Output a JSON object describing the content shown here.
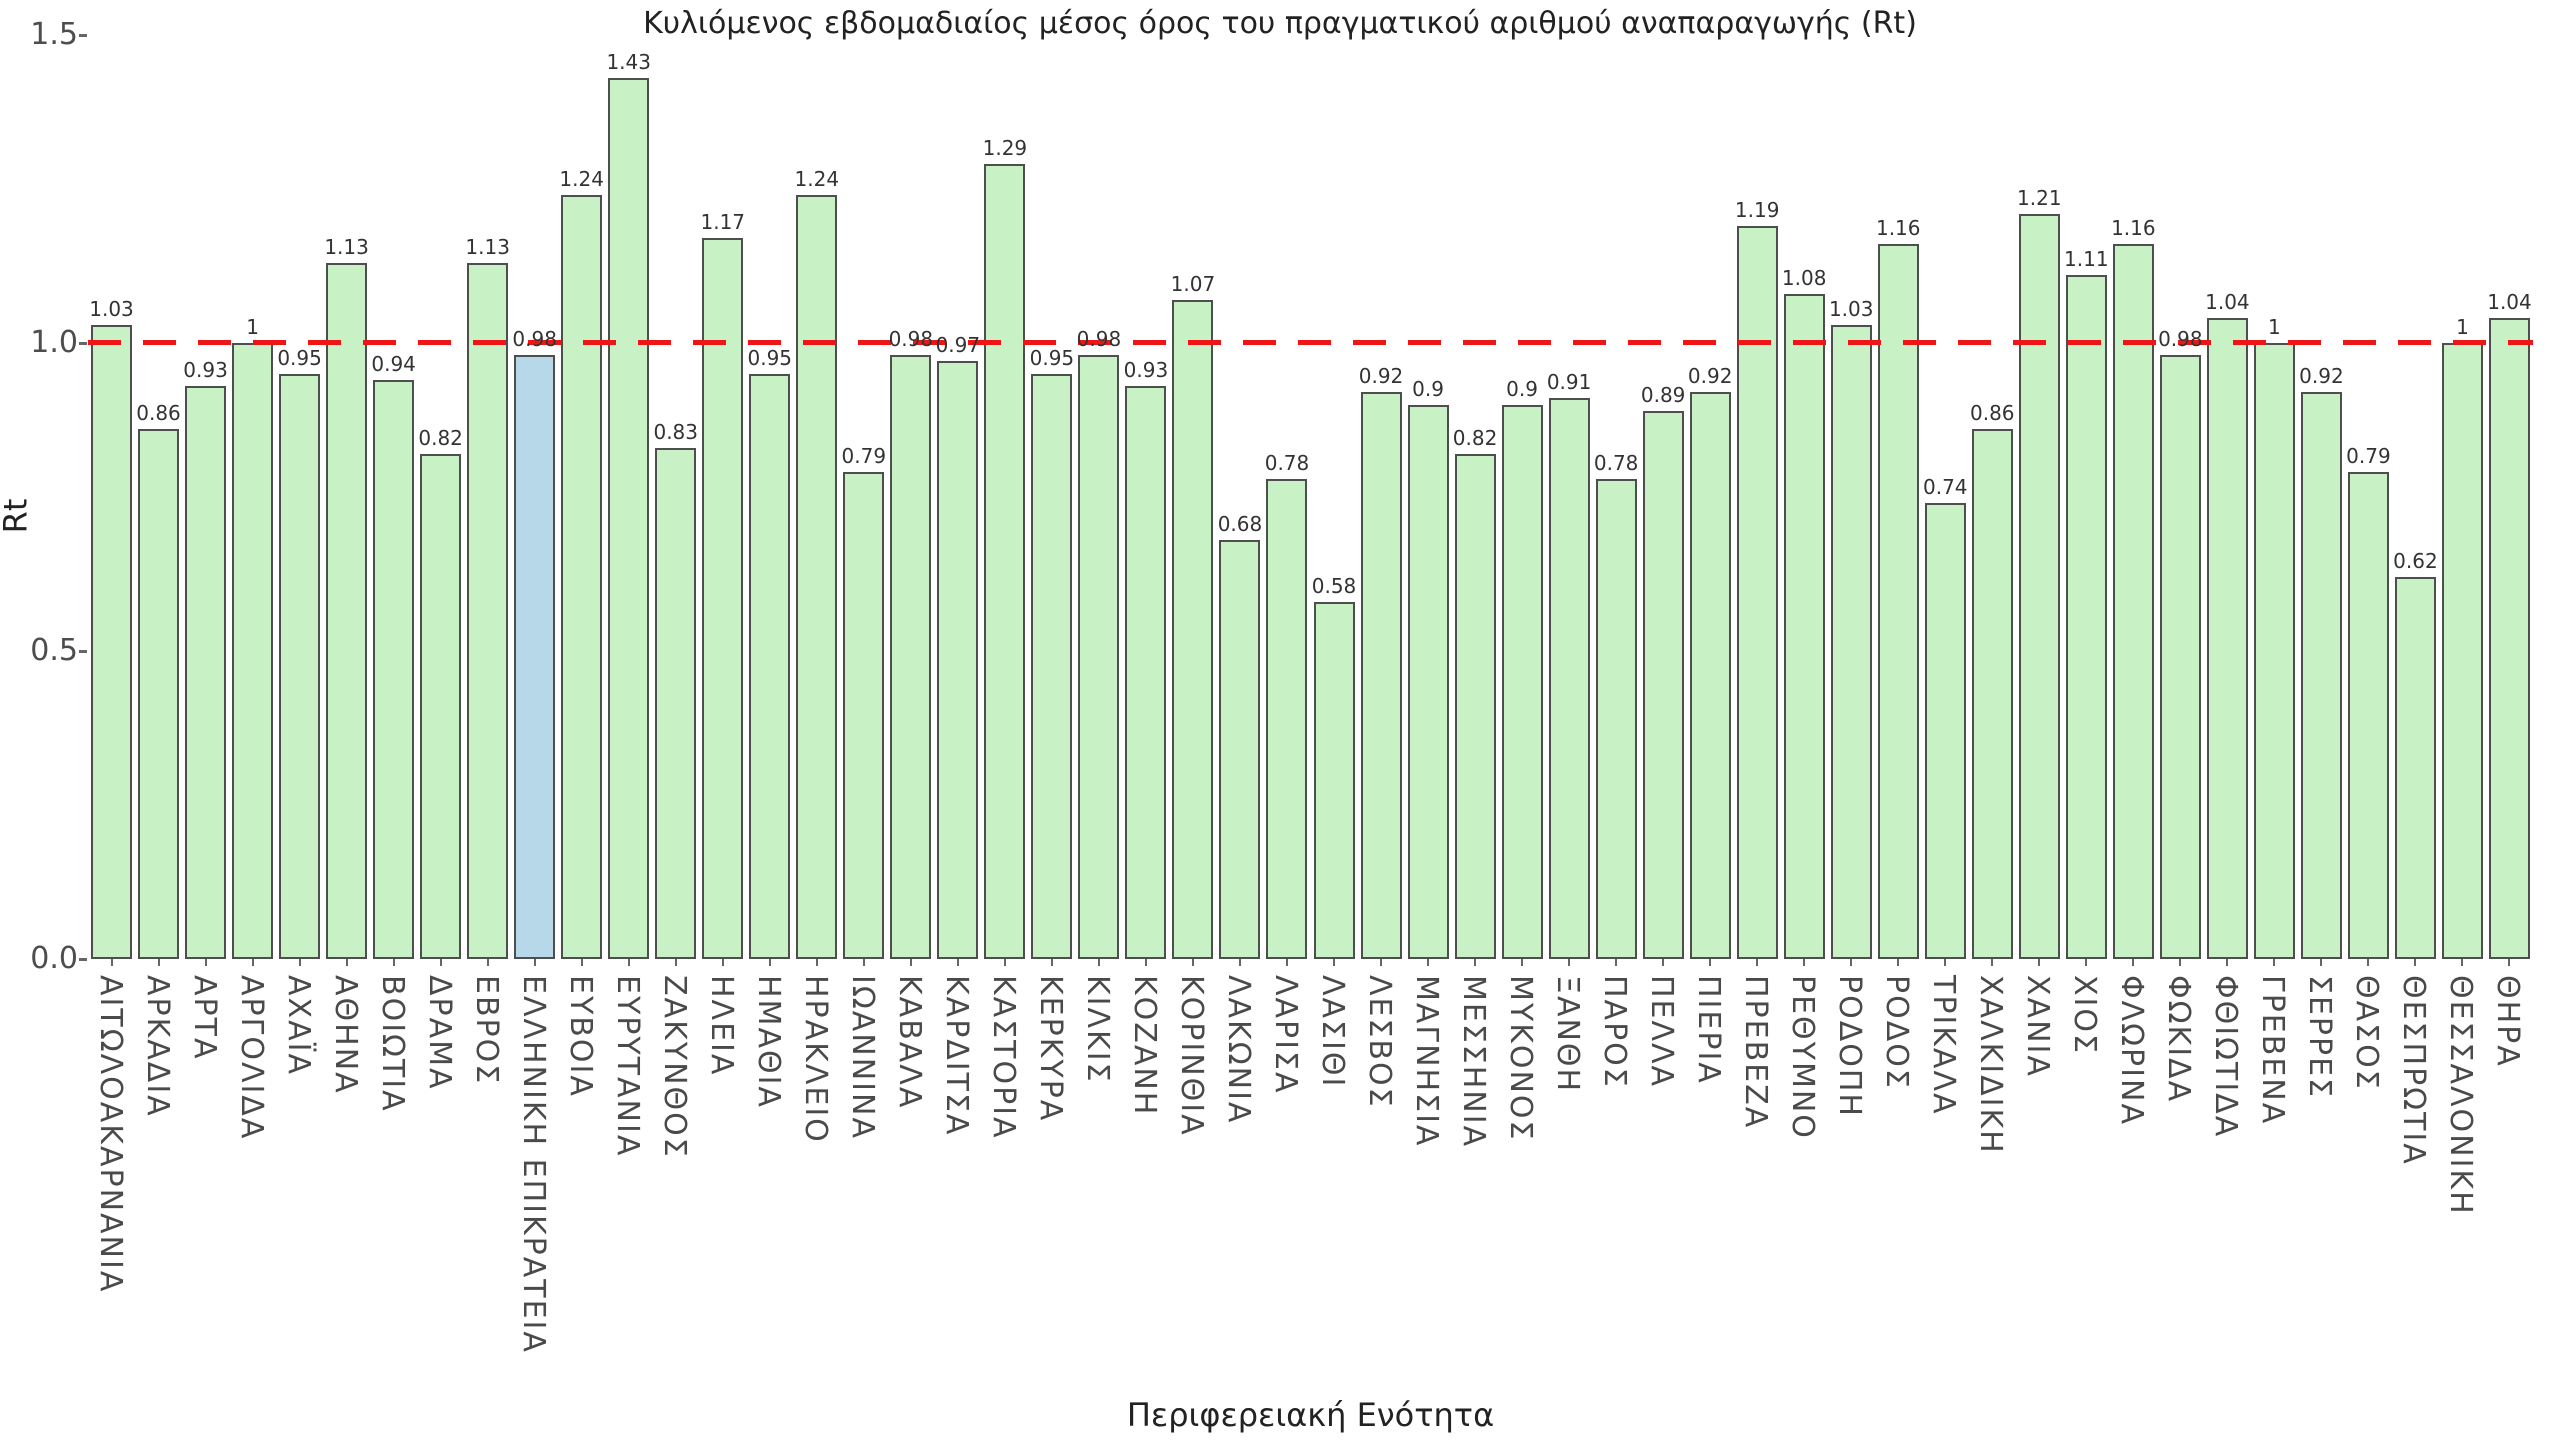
{
  "title": "Κυλιόμενος εβδομαδιαίος μέσος όρος του πραγματικού αριθμού αναπαραγωγής (Rt)",
  "y_axis": {
    "label": "Rt",
    "tick_labels": [
      "0.0",
      "0.5",
      "1.0",
      "1.5"
    ]
  },
  "x_axis": {
    "label": "Περιφερειακή Ενότητα"
  },
  "reference_line": {
    "value": 1.0,
    "color": "#ed1515",
    "style": "dashed"
  },
  "colors": {
    "bar_fill": "#c8f1c6",
    "highlight_fill": "#b6d8e8",
    "bar_border": "#4e4e4e",
    "reference_red": "#ed1515",
    "text": "#333333"
  },
  "chart_data": {
    "type": "bar",
    "title": "Κυλιόμενος εβδομαδιαίος μέσος όρος του πραγματικού αριθμού αναπαραγωγής (Rt)",
    "xlabel": "Περιφερειακή Ενότητα",
    "ylabel": "Rt",
    "ylim": [
      0,
      1.5
    ],
    "yticks": [
      0,
      0.5,
      1,
      1.5
    ],
    "grid": false,
    "legend_position": "none",
    "reference_line_y": 1.0,
    "highlight_category": "ΕΛΛΗΝΙΚΗ ΕΠΙΚΡΑΤΕΙΑ",
    "categories": [
      "ΑΙΤΩΛΟΑΚΑΡΝΑΝΙΑ",
      "ΑΡΚΑΔΙΑ",
      "ΑΡΤΑ",
      "ΑΡΓΟΛΙΔΑ",
      "ΑΧΑΪΑ",
      "ΑΘΗΝΑ",
      "ΒΟΙΩΤΙΑ",
      "ΔΡΑΜΑ",
      "ΕΒΡΟΣ",
      "ΕΛΛΗΝΙΚΗ ΕΠΙΚΡΑΤΕΙΑ",
      "ΕΥΒΟΙΑ",
      "ΕΥΡΥΤΑΝΙΑ",
      "ΖΑΚΥΝΘΟΣ",
      "ΗΛΕΙΑ",
      "ΗΜΑΘΙΑ",
      "ΗΡΑΚΛΕΙΟ",
      "ΙΩΑΝΝΙΝΑ",
      "ΚΑΒΑΛΑ",
      "ΚΑΡΔΙΤΣΑ",
      "ΚΑΣΤΟΡΙΑ",
      "ΚΕΡΚΥΡΑ",
      "ΚΙΛΚΙΣ",
      "ΚΟΖΑΝΗ",
      "ΚΟΡΙΝΘΙΑ",
      "ΛΑΚΩΝΙΑ",
      "ΛΑΡΙΣΑ",
      "ΛΑΣΙΘΙ",
      "ΛΕΣΒΟΣ",
      "ΜΑΓΝΗΣΙΑ",
      "ΜΕΣΣΗΝΙΑ",
      "ΜΥΚΟΝΟΣ",
      "ΞΑΝΘΗ",
      "ΠΑΡΟΣ",
      "ΠΕΛΛΑ",
      "ΠΙΕΡΙΑ",
      "ΠΡΕΒΕΖΑ",
      "ΡΕΘΥΜΝΟ",
      "ΡΟΔΟΠΗ",
      "ΡΟΔΟΣ",
      "ΤΡΙΚΑΛΑ",
      "ΧΑΛΚΙΔΙΚΗ",
      "ΧΑΝΙΑ",
      "ΧΙΟΣ",
      "ΦΛΩΡΙΝΑ",
      "ΦΩΚΙΔΑ",
      "ΦΘΙΩΤΙΔΑ",
      "ΓΡΕΒΕΝΑ",
      "ΣΕΡΡΕΣ",
      "ΘΑΣΟΣ",
      "ΘΕΣΠΡΩΤΙΑ",
      "ΘΕΣΣΑΛΟΝΙΚΗ",
      "ΘΗΡΑ"
    ],
    "values": [
      1.03,
      0.86,
      0.93,
      1,
      0.95,
      1.13,
      0.94,
      0.82,
      1.13,
      0.98,
      1.24,
      1.43,
      0.83,
      1.17,
      0.95,
      1.24,
      0.79,
      0.98,
      0.97,
      1.29,
      0.95,
      0.98,
      0.93,
      1.07,
      0.68,
      0.78,
      0.58,
      0.92,
      0.9,
      0.82,
      0.9,
      0.91,
      0.78,
      0.89,
      0.92,
      1.19,
      1.08,
      1.03,
      1.16,
      0.74,
      0.86,
      1.21,
      1.11,
      1.16,
      0.98,
      1.04,
      1,
      0.92,
      0.79,
      0.62,
      1,
      1.04
    ]
  }
}
